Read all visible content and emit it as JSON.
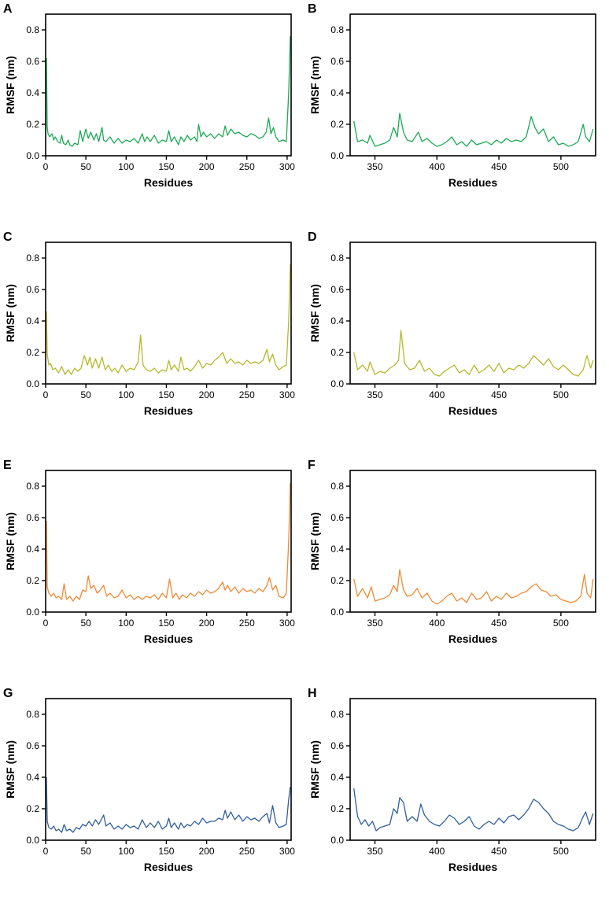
{
  "chart_data": [
    {
      "panel": "A",
      "type": "line",
      "color": "#1aaa55",
      "xlabel": "Residues",
      "ylabel": "RMSF (nm)",
      "xlim": [
        0,
        305
      ],
      "ylim": [
        0,
        0.9
      ],
      "xticks": [
        0,
        50,
        100,
        150,
        200,
        250,
        300
      ],
      "yticks": [
        0.0,
        0.2,
        0.4,
        0.6,
        0.8
      ],
      "xtick_labels": [
        "0",
        "50",
        "100",
        "150",
        "200",
        "250",
        "300"
      ],
      "ytick_labels": [
        "0.0",
        "0.2",
        "0.4",
        "0.6",
        "0.8"
      ],
      "x": [
        1,
        2,
        3,
        5,
        8,
        10,
        12,
        15,
        18,
        20,
        22,
        25,
        28,
        30,
        33,
        36,
        40,
        43,
        46,
        50,
        53,
        56,
        60,
        63,
        66,
        70,
        72,
        75,
        80,
        85,
        90,
        95,
        100,
        105,
        110,
        115,
        120,
        123,
        126,
        130,
        135,
        140,
        145,
        150,
        153,
        156,
        160,
        165,
        168,
        172,
        176,
        180,
        185,
        188,
        190,
        193,
        196,
        200,
        205,
        210,
        215,
        220,
        223,
        226,
        230,
        235,
        240,
        245,
        250,
        255,
        260,
        265,
        270,
        274,
        277,
        280,
        283,
        286,
        290,
        295,
        299,
        302,
        304
      ],
      "y": [
        0.62,
        0.18,
        0.14,
        0.12,
        0.14,
        0.1,
        0.12,
        0.09,
        0.08,
        0.13,
        0.08,
        0.07,
        0.1,
        0.07,
        0.06,
        0.08,
        0.07,
        0.16,
        0.09,
        0.17,
        0.11,
        0.15,
        0.1,
        0.14,
        0.09,
        0.18,
        0.1,
        0.09,
        0.12,
        0.08,
        0.11,
        0.08,
        0.1,
        0.09,
        0.11,
        0.08,
        0.14,
        0.09,
        0.12,
        0.09,
        0.13,
        0.08,
        0.1,
        0.09,
        0.16,
        0.09,
        0.12,
        0.07,
        0.12,
        0.09,
        0.13,
        0.1,
        0.12,
        0.09,
        0.2,
        0.12,
        0.15,
        0.12,
        0.14,
        0.11,
        0.14,
        0.12,
        0.19,
        0.13,
        0.17,
        0.14,
        0.15,
        0.13,
        0.12,
        0.14,
        0.13,
        0.11,
        0.12,
        0.15,
        0.24,
        0.14,
        0.18,
        0.12,
        0.09,
        0.1,
        0.09,
        0.4,
        0.76
      ]
    },
    {
      "panel": "B",
      "type": "line",
      "color": "#1aaa55",
      "xlabel": "Residues",
      "ylabel": "RMSF (nm)",
      "xlim": [
        330,
        528
      ],
      "ylim": [
        0,
        0.9
      ],
      "xticks": [
        350,
        400,
        450,
        500
      ],
      "yticks": [
        0.0,
        0.2,
        0.4,
        0.6,
        0.8
      ],
      "xtick_labels": [
        "350",
        "400",
        "450",
        "500"
      ],
      "ytick_labels": [
        "0.0",
        "0.2",
        "0.4",
        "0.6",
        "0.8"
      ],
      "x": [
        333,
        336,
        340,
        344,
        346,
        350,
        354,
        358,
        362,
        365,
        368,
        370,
        373,
        376,
        380,
        385,
        388,
        392,
        396,
        400,
        404,
        408,
        412,
        416,
        420,
        424,
        428,
        432,
        436,
        440,
        444,
        448,
        452,
        456,
        460,
        464,
        468,
        472,
        476,
        479,
        482,
        486,
        490,
        494,
        498,
        502,
        506,
        510,
        514,
        518,
        520,
        523,
        526
      ],
      "y": [
        0.22,
        0.09,
        0.1,
        0.08,
        0.13,
        0.06,
        0.07,
        0.08,
        0.1,
        0.18,
        0.12,
        0.27,
        0.15,
        0.1,
        0.09,
        0.15,
        0.09,
        0.11,
        0.08,
        0.06,
        0.07,
        0.09,
        0.12,
        0.07,
        0.09,
        0.06,
        0.1,
        0.07,
        0.08,
        0.09,
        0.07,
        0.1,
        0.08,
        0.11,
        0.09,
        0.1,
        0.09,
        0.12,
        0.25,
        0.18,
        0.14,
        0.17,
        0.09,
        0.12,
        0.07,
        0.08,
        0.06,
        0.07,
        0.09,
        0.2,
        0.12,
        0.09,
        0.17
      ]
    },
    {
      "panel": "C",
      "type": "line",
      "color": "#b5b82a",
      "xlabel": "Residues",
      "ylabel": "RMSF (nm)",
      "xlim": [
        0,
        305
      ],
      "ylim": [
        0,
        0.9
      ],
      "xticks": [
        0,
        50,
        100,
        150,
        200,
        250,
        300
      ],
      "yticks": [
        0.0,
        0.2,
        0.4,
        0.6,
        0.8
      ],
      "xtick_labels": [
        "0",
        "50",
        "100",
        "150",
        "200",
        "250",
        "300"
      ],
      "ytick_labels": [
        "0.0",
        "0.2",
        "0.4",
        "0.6",
        "0.8"
      ],
      "x": [
        1,
        2,
        4,
        6,
        9,
        12,
        16,
        20,
        24,
        28,
        32,
        36,
        40,
        44,
        48,
        52,
        55,
        58,
        62,
        66,
        70,
        74,
        78,
        82,
        86,
        90,
        95,
        100,
        105,
        110,
        115,
        118,
        121,
        125,
        130,
        135,
        140,
        145,
        150,
        153,
        156,
        160,
        165,
        168,
        172,
        176,
        180,
        185,
        190,
        195,
        200,
        205,
        210,
        215,
        220,
        225,
        230,
        235,
        240,
        245,
        250,
        255,
        260,
        265,
        270,
        275,
        278,
        282,
        286,
        290,
        295,
        299,
        302,
        304
      ],
      "y": [
        0.46,
        0.19,
        0.12,
        0.13,
        0.09,
        0.1,
        0.07,
        0.11,
        0.06,
        0.09,
        0.06,
        0.1,
        0.08,
        0.1,
        0.18,
        0.12,
        0.17,
        0.1,
        0.16,
        0.1,
        0.17,
        0.09,
        0.12,
        0.08,
        0.1,
        0.07,
        0.12,
        0.08,
        0.1,
        0.09,
        0.14,
        0.31,
        0.12,
        0.09,
        0.08,
        0.1,
        0.07,
        0.09,
        0.08,
        0.15,
        0.09,
        0.12,
        0.08,
        0.17,
        0.09,
        0.1,
        0.08,
        0.11,
        0.15,
        0.1,
        0.13,
        0.12,
        0.15,
        0.17,
        0.2,
        0.13,
        0.16,
        0.13,
        0.14,
        0.12,
        0.15,
        0.13,
        0.14,
        0.13,
        0.15,
        0.22,
        0.14,
        0.19,
        0.12,
        0.09,
        0.11,
        0.12,
        0.4,
        0.76
      ]
    },
    {
      "panel": "D",
      "type": "line",
      "color": "#b5b82a",
      "xlabel": "Residues",
      "ylabel": "RMSF (nm)",
      "xlim": [
        330,
        528
      ],
      "ylim": [
        0,
        0.9
      ],
      "xticks": [
        350,
        400,
        450,
        500
      ],
      "yticks": [
        0.0,
        0.2,
        0.4,
        0.6,
        0.8
      ],
      "xtick_labels": [
        "350",
        "400",
        "450",
        "500"
      ],
      "ytick_labels": [
        "0.0",
        "0.2",
        "0.4",
        "0.6",
        "0.8"
      ],
      "x": [
        333,
        336,
        340,
        344,
        346,
        350,
        354,
        358,
        362,
        366,
        369,
        371,
        374,
        378,
        382,
        386,
        390,
        394,
        398,
        402,
        406,
        410,
        414,
        418,
        422,
        426,
        430,
        434,
        438,
        442,
        446,
        450,
        454,
        458,
        462,
        466,
        470,
        474,
        478,
        482,
        486,
        490,
        494,
        498,
        502,
        506,
        510,
        514,
        518,
        521,
        524,
        526
      ],
      "y": [
        0.2,
        0.09,
        0.12,
        0.08,
        0.14,
        0.06,
        0.08,
        0.07,
        0.1,
        0.12,
        0.15,
        0.34,
        0.13,
        0.09,
        0.1,
        0.15,
        0.08,
        0.1,
        0.06,
        0.05,
        0.08,
        0.1,
        0.12,
        0.07,
        0.09,
        0.06,
        0.12,
        0.07,
        0.09,
        0.12,
        0.08,
        0.13,
        0.07,
        0.1,
        0.09,
        0.12,
        0.1,
        0.13,
        0.18,
        0.15,
        0.12,
        0.16,
        0.11,
        0.09,
        0.12,
        0.09,
        0.06,
        0.05,
        0.09,
        0.18,
        0.1,
        0.15
      ]
    },
    {
      "panel": "E",
      "type": "line",
      "color": "#ef8a33",
      "xlabel": "Residues",
      "ylabel": "RMSF (nm)",
      "xlim": [
        0,
        305
      ],
      "ylim": [
        0,
        0.9
      ],
      "xticks": [
        0,
        50,
        100,
        150,
        200,
        250,
        300
      ],
      "yticks": [
        0.0,
        0.2,
        0.4,
        0.6,
        0.8
      ],
      "xtick_labels": [
        "0",
        "50",
        "100",
        "150",
        "200",
        "250",
        "300"
      ],
      "ytick_labels": [
        "0.0",
        "0.2",
        "0.4",
        "0.6",
        "0.8"
      ],
      "x": [
        1,
        2,
        4,
        7,
        10,
        13,
        16,
        20,
        23,
        26,
        30,
        34,
        38,
        42,
        46,
        50,
        53,
        56,
        60,
        64,
        68,
        72,
        76,
        80,
        85,
        90,
        95,
        100,
        105,
        110,
        115,
        120,
        125,
        130,
        135,
        140,
        145,
        150,
        154,
        158,
        162,
        166,
        170,
        175,
        180,
        185,
        190,
        195,
        200,
        205,
        210,
        215,
        220,
        223,
        226,
        230,
        235,
        240,
        245,
        250,
        255,
        260,
        265,
        270,
        275,
        278,
        282,
        286,
        290,
        295,
        299,
        302,
        304
      ],
      "y": [
        0.58,
        0.16,
        0.12,
        0.1,
        0.12,
        0.09,
        0.1,
        0.08,
        0.18,
        0.08,
        0.1,
        0.07,
        0.1,
        0.08,
        0.14,
        0.13,
        0.23,
        0.15,
        0.17,
        0.12,
        0.14,
        0.17,
        0.1,
        0.12,
        0.09,
        0.1,
        0.14,
        0.09,
        0.11,
        0.08,
        0.1,
        0.08,
        0.1,
        0.09,
        0.11,
        0.08,
        0.12,
        0.09,
        0.21,
        0.09,
        0.12,
        0.08,
        0.11,
        0.09,
        0.12,
        0.1,
        0.13,
        0.11,
        0.14,
        0.12,
        0.13,
        0.15,
        0.19,
        0.14,
        0.17,
        0.13,
        0.16,
        0.12,
        0.15,
        0.13,
        0.14,
        0.12,
        0.15,
        0.13,
        0.17,
        0.22,
        0.14,
        0.17,
        0.1,
        0.09,
        0.12,
        0.45,
        0.82
      ]
    },
    {
      "panel": "F",
      "type": "line",
      "color": "#ef8a33",
      "xlabel": "Residues",
      "ylabel": "RMSF (nm)",
      "xlim": [
        330,
        528
      ],
      "ylim": [
        0,
        0.9
      ],
      "xticks": [
        350,
        400,
        450,
        500
      ],
      "yticks": [
        0.0,
        0.2,
        0.4,
        0.6,
        0.8
      ],
      "xtick_labels": [
        "350",
        "400",
        "450",
        "500"
      ],
      "ytick_labels": [
        "0.0",
        "0.2",
        "0.4",
        "0.6",
        "0.8"
      ],
      "x": [
        333,
        336,
        340,
        344,
        347,
        350,
        354,
        358,
        362,
        365,
        368,
        370,
        373,
        376,
        380,
        384,
        388,
        392,
        396,
        400,
        404,
        408,
        412,
        416,
        420,
        424,
        428,
        432,
        436,
        440,
        444,
        448,
        452,
        456,
        460,
        464,
        468,
        472,
        476,
        480,
        484,
        488,
        492,
        496,
        500,
        504,
        508,
        512,
        516,
        519,
        521,
        524,
        526
      ],
      "y": [
        0.21,
        0.1,
        0.15,
        0.09,
        0.16,
        0.07,
        0.08,
        0.09,
        0.11,
        0.17,
        0.13,
        0.27,
        0.14,
        0.1,
        0.11,
        0.15,
        0.09,
        0.12,
        0.07,
        0.05,
        0.07,
        0.1,
        0.12,
        0.07,
        0.09,
        0.06,
        0.12,
        0.08,
        0.09,
        0.13,
        0.07,
        0.1,
        0.08,
        0.12,
        0.09,
        0.1,
        0.12,
        0.13,
        0.16,
        0.18,
        0.14,
        0.13,
        0.1,
        0.11,
        0.08,
        0.07,
        0.06,
        0.07,
        0.1,
        0.24,
        0.12,
        0.09,
        0.21
      ]
    },
    {
      "panel": "G",
      "type": "line",
      "color": "#2f5e9e",
      "xlabel": "Residues",
      "ylabel": "RMSF (nm)",
      "xlim": [
        0,
        305
      ],
      "ylim": [
        0,
        0.9
      ],
      "xticks": [
        0,
        50,
        100,
        150,
        200,
        250,
        300
      ],
      "yticks": [
        0.0,
        0.2,
        0.4,
        0.6,
        0.8
      ],
      "xtick_labels": [
        "0",
        "50",
        "100",
        "150",
        "200",
        "250",
        "300"
      ],
      "ytick_labels": [
        "0.0",
        "0.2",
        "0.4",
        "0.6",
        "0.8"
      ],
      "x": [
        1,
        2,
        4,
        7,
        10,
        13,
        16,
        20,
        23,
        26,
        30,
        34,
        38,
        42,
        46,
        50,
        54,
        58,
        62,
        66,
        70,
        72,
        75,
        80,
        85,
        90,
        95,
        100,
        105,
        110,
        115,
        120,
        125,
        130,
        135,
        140,
        145,
        150,
        153,
        156,
        160,
        165,
        168,
        172,
        176,
        180,
        185,
        190,
        195,
        200,
        205,
        210,
        215,
        220,
        223,
        226,
        230,
        235,
        240,
        245,
        250,
        255,
        260,
        265,
        270,
        275,
        278,
        282,
        286,
        290,
        295,
        299,
        302,
        304
      ],
      "y": [
        0.4,
        0.12,
        0.08,
        0.07,
        0.09,
        0.06,
        0.07,
        0.05,
        0.1,
        0.06,
        0.07,
        0.05,
        0.08,
        0.07,
        0.1,
        0.09,
        0.12,
        0.09,
        0.13,
        0.1,
        0.14,
        0.16,
        0.09,
        0.11,
        0.07,
        0.09,
        0.07,
        0.1,
        0.08,
        0.09,
        0.07,
        0.13,
        0.08,
        0.11,
        0.08,
        0.12,
        0.07,
        0.09,
        0.14,
        0.08,
        0.11,
        0.07,
        0.11,
        0.08,
        0.1,
        0.09,
        0.12,
        0.1,
        0.14,
        0.11,
        0.12,
        0.12,
        0.14,
        0.13,
        0.19,
        0.14,
        0.18,
        0.13,
        0.16,
        0.12,
        0.15,
        0.13,
        0.14,
        0.12,
        0.15,
        0.17,
        0.11,
        0.22,
        0.11,
        0.08,
        0.09,
        0.1,
        0.26,
        0.34
      ]
    },
    {
      "panel": "H",
      "type": "line",
      "color": "#2f5e9e",
      "xlabel": "Residues",
      "ylabel": "RMSF (nm)",
      "xlim": [
        330,
        528
      ],
      "ylim": [
        0,
        0.9
      ],
      "xticks": [
        350,
        400,
        450,
        500
      ],
      "yticks": [
        0.0,
        0.2,
        0.4,
        0.6,
        0.8
      ],
      "xtick_labels": [
        "350",
        "400",
        "450",
        "500"
      ],
      "ytick_labels": [
        "0.0",
        "0.2",
        "0.4",
        "0.6",
        "0.8"
      ],
      "x": [
        333,
        336,
        339,
        342,
        345,
        348,
        351,
        354,
        358,
        362,
        365,
        368,
        370,
        373,
        376,
        380,
        384,
        387,
        390,
        394,
        398,
        402,
        406,
        410,
        414,
        418,
        422,
        426,
        430,
        434,
        438,
        442,
        446,
        450,
        454,
        458,
        462,
        466,
        470,
        474,
        478,
        482,
        486,
        490,
        494,
        498,
        502,
        506,
        510,
        514,
        518,
        520,
        523,
        526
      ],
      "y": [
        0.33,
        0.15,
        0.1,
        0.13,
        0.09,
        0.12,
        0.06,
        0.08,
        0.09,
        0.1,
        0.2,
        0.17,
        0.27,
        0.24,
        0.12,
        0.15,
        0.12,
        0.23,
        0.16,
        0.12,
        0.1,
        0.09,
        0.12,
        0.16,
        0.14,
        0.1,
        0.12,
        0.15,
        0.09,
        0.07,
        0.1,
        0.12,
        0.1,
        0.14,
        0.11,
        0.15,
        0.16,
        0.13,
        0.16,
        0.2,
        0.26,
        0.24,
        0.2,
        0.17,
        0.12,
        0.1,
        0.09,
        0.07,
        0.06,
        0.08,
        0.15,
        0.18,
        0.1,
        0.17
      ]
    }
  ]
}
